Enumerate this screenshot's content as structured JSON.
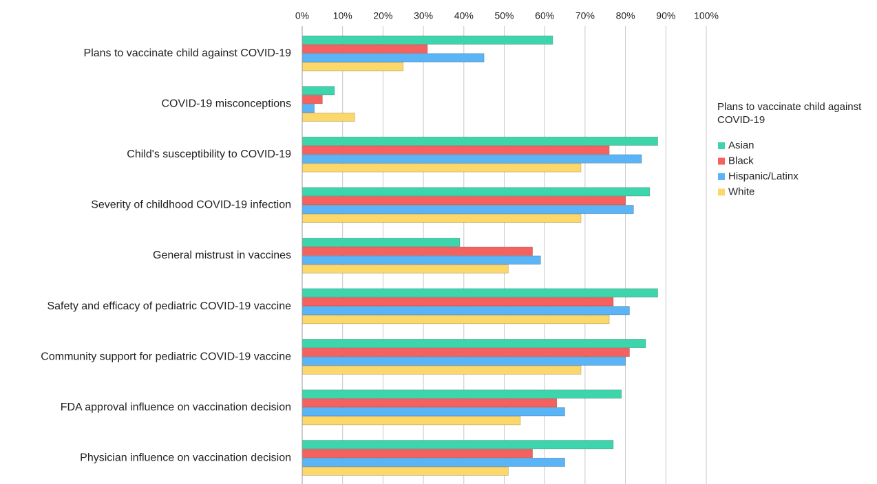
{
  "chart_data": {
    "type": "hbar",
    "legend_title": "Plans to vaccinate child against COVID-19",
    "categories": [
      "Plans to vaccinate child against COVID-19",
      "COVID-19 misconceptions",
      "Child's susceptibility to COVID-19",
      "Severity of childhood COVID-19 infection",
      "General mistrust in vaccines",
      "Safety and efficacy of pediatric COVID-19 vaccine",
      "Community support for pediatric COVID-19 vaccine",
      "FDA approval influence on vaccination decision",
      "Physician influence on vaccination decision"
    ],
    "series": [
      {
        "name": "Asian",
        "color": "#3dd6ac",
        "values": [
          62,
          8,
          88,
          86,
          39,
          88,
          85,
          79,
          77
        ]
      },
      {
        "name": "Black",
        "color": "#f4615f",
        "values": [
          31,
          5,
          76,
          80,
          57,
          77,
          81,
          63,
          57
        ]
      },
      {
        "name": "Hispanic/Latinx",
        "color": "#5ab4f5",
        "values": [
          45,
          3,
          84,
          82,
          59,
          81,
          80,
          65,
          65
        ]
      },
      {
        "name": "White",
        "color": "#fcd76a",
        "values": [
          25,
          13,
          69,
          69,
          51,
          76,
          69,
          54,
          51
        ]
      }
    ],
    "xlim": [
      0,
      100
    ],
    "xticks": [
      {
        "value": 0,
        "label": "0%"
      },
      {
        "value": 10,
        "label": "10%"
      },
      {
        "value": 20,
        "label": "20%"
      },
      {
        "value": 30,
        "label": "30%"
      },
      {
        "value": 40,
        "label": "40%"
      },
      {
        "value": 50,
        "label": "50%"
      },
      {
        "value": 60,
        "label": "60%"
      },
      {
        "value": 70,
        "label": "70%"
      },
      {
        "value": 80,
        "label": "80%"
      },
      {
        "value": 90,
        "label": "90%"
      },
      {
        "value": 100,
        "label": "100%"
      }
    ],
    "grid": true,
    "legend": "right"
  }
}
